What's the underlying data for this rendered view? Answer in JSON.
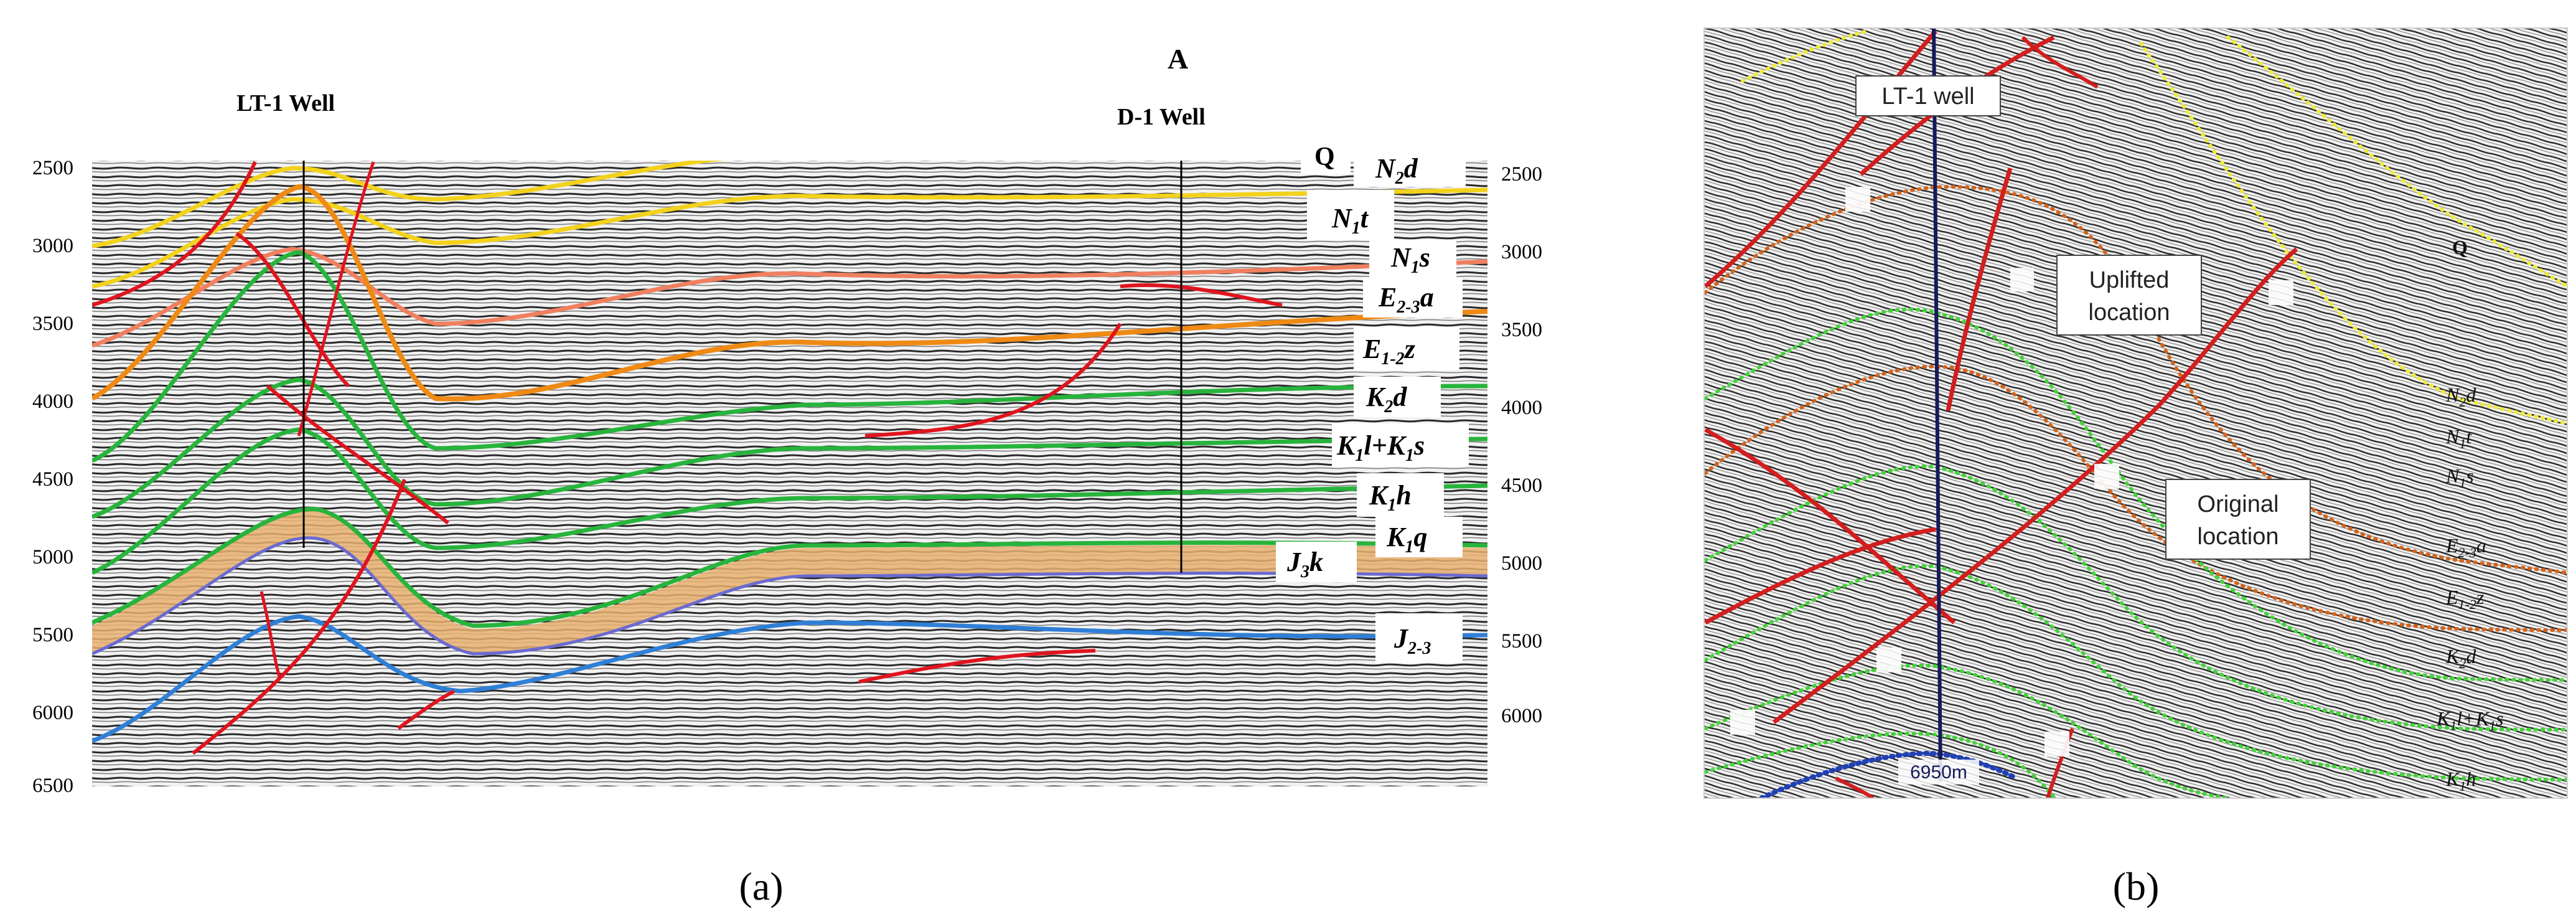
{
  "panel_a": {
    "caption": "(a)",
    "wells": [
      {
        "label": "LT-1 Well"
      },
      {
        "label": "D-1 Well"
      }
    ],
    "marker": "A",
    "depth_ticks_left": [
      "2500",
      "3000",
      "3500",
      "4000",
      "4500",
      "5000",
      "5500",
      "6000",
      "6500"
    ],
    "depth_ticks_right": [
      "2500",
      "3000",
      "3500",
      "4000",
      "4500",
      "5000",
      "5500",
      "6000"
    ],
    "formations": [
      {
        "key": "Q",
        "label": "Q"
      },
      {
        "key": "N2d",
        "base": "N",
        "sub": "2",
        "rest": "d"
      },
      {
        "key": "N1t",
        "base": "N",
        "sub": "1",
        "rest": "t"
      },
      {
        "key": "N1s",
        "base": "N",
        "sub": "1",
        "rest": "s"
      },
      {
        "key": "E23a",
        "base": "E",
        "sub": "2-3",
        "rest": "a"
      },
      {
        "key": "E12z",
        "base": "E",
        "sub": "1-2",
        "rest": "z"
      },
      {
        "key": "K2d",
        "base": "K",
        "sub": "2",
        "rest": "d"
      },
      {
        "key": "K1lK1s",
        "base": "K",
        "sub": "1",
        "rest": "l+K",
        "sub2": "1",
        "rest2": "s"
      },
      {
        "key": "K1h",
        "base": "K",
        "sub": "1",
        "rest": "h"
      },
      {
        "key": "K1q",
        "base": "K",
        "sub": "1",
        "rest": "q"
      },
      {
        "key": "J3k",
        "base": "J",
        "sub": "3",
        "rest": "k"
      },
      {
        "key": "J23",
        "base": "J",
        "sub": "2-3",
        "rest": ""
      }
    ],
    "colors": {
      "yellow": "#f2d21c",
      "salmon": "#f08060",
      "orange": "#ef8a14",
      "green": "#28b43c",
      "blue": "#2f7fd6",
      "fault": "#e0141e",
      "tan": "#e8b070"
    }
  },
  "panel_b": {
    "caption": "(b)",
    "well_label": "LT-1 well",
    "uplifted_label_line1": "Uplifted",
    "uplifted_label_line2": "location",
    "original_label_line1": "Original",
    "original_label_line2": "location",
    "depth_label": "6950m",
    "formations": [
      {
        "key": "Q",
        "label": "Q"
      },
      {
        "key": "N2d",
        "base": "N",
        "sub": "2",
        "rest": "d"
      },
      {
        "key": "N1t",
        "base": "N",
        "sub": "1",
        "rest": "t"
      },
      {
        "key": "N1s",
        "base": "N",
        "sub": "1",
        "rest": "s"
      },
      {
        "key": "E23a",
        "base": "E",
        "sub": "2-3",
        "rest": "a"
      },
      {
        "key": "E12z",
        "base": "E",
        "sub": "1-2",
        "rest": "z"
      },
      {
        "key": "K2d",
        "base": "K",
        "sub": "2",
        "rest": "d"
      },
      {
        "key": "K1lK1s",
        "base": "K",
        "sub": "1",
        "rest": "l+K",
        "sub2": "1",
        "rest2": "s"
      },
      {
        "key": "K1h",
        "base": "K",
        "sub": "1",
        "rest": "h"
      }
    ],
    "colors": {
      "yellow_dot": "#eeea40",
      "orange_dot": "#d2641e",
      "green_dot": "#46d23c",
      "blue_dot": "#2040b4",
      "well": "#141a5a",
      "fault": "#d21e1e"
    }
  }
}
